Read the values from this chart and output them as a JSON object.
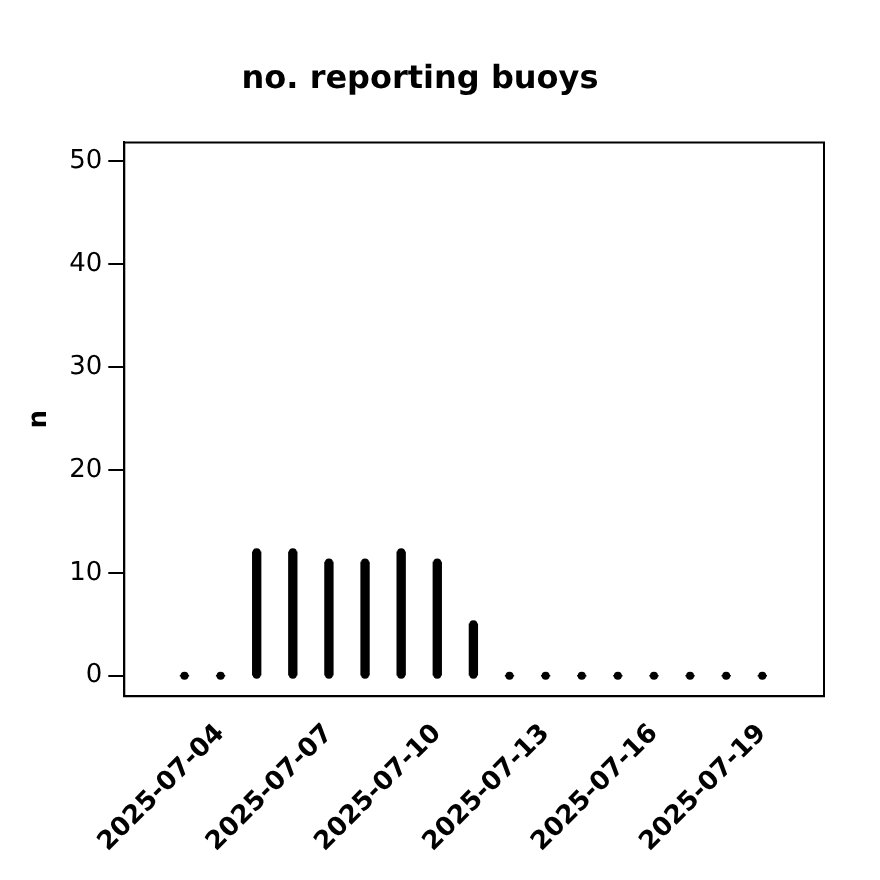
{
  "chart_data": {
    "type": "bar",
    "title": "no. reporting buoys",
    "ylabel": "n",
    "x": [
      "2025-07-03",
      "2025-07-04",
      "2025-07-05",
      "2025-07-06",
      "2025-07-07",
      "2025-07-08",
      "2025-07-09",
      "2025-07-10",
      "2025-07-11",
      "2025-07-12",
      "2025-07-13",
      "2025-07-14",
      "2025-07-15",
      "2025-07-16",
      "2025-07-17",
      "2025-07-18",
      "2025-07-19"
    ],
    "values": [
      0,
      0,
      12,
      12,
      11,
      11,
      12,
      11,
      5,
      0,
      0,
      0,
      0,
      0,
      0,
      0,
      0
    ],
    "color": "#000000",
    "xlim": [
      "2025-07-01T08:00",
      "2025-07-20T17:00"
    ],
    "xticks": [
      "2025-07-04",
      "2025-07-07",
      "2025-07-10",
      "2025-07-13",
      "2025-07-16",
      "2025-07-19"
    ],
    "ylim": [
      -2,
      51.8
    ],
    "yticks": [
      0,
      10,
      20,
      30,
      40,
      50
    ],
    "grid": false,
    "legend": false
  }
}
